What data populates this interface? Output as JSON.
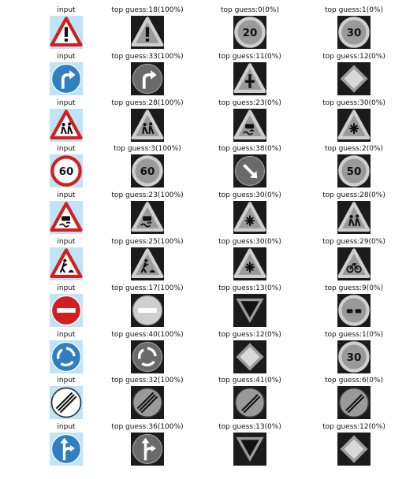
{
  "rows": [
    {
      "input": {
        "title": "input",
        "sign": "warning-exclamation"
      },
      "guesses": [
        {
          "title": "top guess:18(100%)",
          "sign": "warning-exclamation"
        },
        {
          "title": "top guess:0(0%)",
          "sign": "speed-20"
        },
        {
          "title": "top guess:1(0%)",
          "sign": "speed-30"
        }
      ]
    },
    {
      "input": {
        "title": "input",
        "sign": "turn-right-ahead"
      },
      "guesses": [
        {
          "title": "top guess:33(100%)",
          "sign": "turn-right-ahead"
        },
        {
          "title": "top guess:11(0%)",
          "sign": "warning-intersection"
        },
        {
          "title": "top guess:12(0%)",
          "sign": "priority-road"
        }
      ]
    },
    {
      "input": {
        "title": "input",
        "sign": "warning-children"
      },
      "guesses": [
        {
          "title": "top guess:28(100%)",
          "sign": "warning-children"
        },
        {
          "title": "top guess:23(0%)",
          "sign": "warning-slippery"
        },
        {
          "title": "top guess:30(0%)",
          "sign": "warning-snow"
        }
      ]
    },
    {
      "input": {
        "title": "input",
        "sign": "speed-60"
      },
      "guesses": [
        {
          "title": "top guess:3(100%)",
          "sign": "speed-60"
        },
        {
          "title": "top guess:38(0%)",
          "sign": "keep-right"
        },
        {
          "title": "top guess:2(0%)",
          "sign": "speed-50"
        }
      ]
    },
    {
      "input": {
        "title": "input",
        "sign": "warning-slippery"
      },
      "guesses": [
        {
          "title": "top guess:23(100%)",
          "sign": "warning-slippery"
        },
        {
          "title": "top guess:30(0%)",
          "sign": "warning-snow"
        },
        {
          "title": "top guess:28(0%)",
          "sign": "warning-children"
        }
      ]
    },
    {
      "input": {
        "title": "input",
        "sign": "warning-roadwork"
      },
      "guesses": [
        {
          "title": "top guess:25(100%)",
          "sign": "warning-roadwork"
        },
        {
          "title": "top guess:30(0%)",
          "sign": "warning-snow"
        },
        {
          "title": "top guess:29(0%)",
          "sign": "warning-bicycle"
        }
      ]
    },
    {
      "input": {
        "title": "input",
        "sign": "no-entry"
      },
      "guesses": [
        {
          "title": "top guess:17(100%)",
          "sign": "no-entry"
        },
        {
          "title": "top guess:13(0%)",
          "sign": "yield"
        },
        {
          "title": "top guess:9(0%)",
          "sign": "no-passing"
        }
      ]
    },
    {
      "input": {
        "title": "input",
        "sign": "roundabout"
      },
      "guesses": [
        {
          "title": "top guess:40(100%)",
          "sign": "roundabout"
        },
        {
          "title": "top guess:12(0%)",
          "sign": "priority-road"
        },
        {
          "title": "top guess:1(0%)",
          "sign": "speed-30"
        }
      ]
    },
    {
      "input": {
        "title": "input",
        "sign": "end-limits"
      },
      "guesses": [
        {
          "title": "top guess:32(100%)",
          "sign": "end-limits"
        },
        {
          "title": "top guess:41(0%)",
          "sign": "end-no-passing"
        },
        {
          "title": "top guess:6(0%)",
          "sign": "end-speed-80"
        }
      ]
    },
    {
      "input": {
        "title": "input",
        "sign": "straight-or-right"
      },
      "guesses": [
        {
          "title": "top guess:36(100%)",
          "sign": "straight-or-right"
        },
        {
          "title": "top guess:13(0%)",
          "sign": "yield"
        },
        {
          "title": "top guess:12(0%)",
          "sign": "priority-road"
        }
      ]
    }
  ]
}
